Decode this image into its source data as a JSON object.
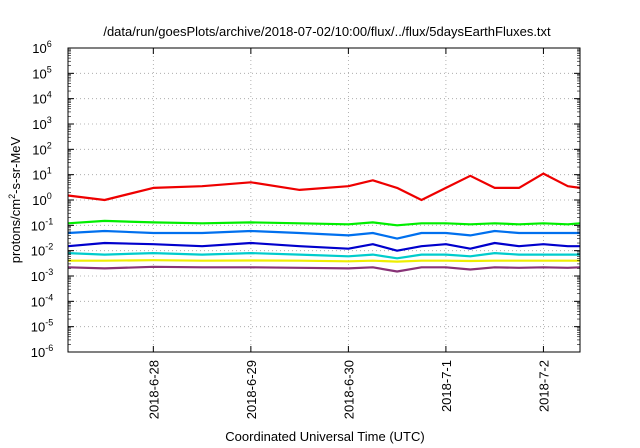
{
  "chart_data": {
    "type": "line",
    "title": "/data/run/goesPlots/archive/2018-07-02/10:00/flux/../flux/5daysEarthFluxes.txt",
    "xlabel": "Coordinated Universal Time (UTC)",
    "ylabel": {
      "prefix": "protons/cm",
      "superscript": "2",
      "suffix": "-s-sr-MeV"
    },
    "x_axis": {
      "kind": "date",
      "range": [
        "2018-06-27 03:00",
        "2018-07-02 09:00"
      ],
      "ticks": [
        {
          "x": "2018-06-28 00:00",
          "label": "2018-6-28"
        },
        {
          "x": "2018-06-29 00:00",
          "label": "2018-6-29"
        },
        {
          "x": "2018-06-30 00:00",
          "label": "2018-6-30"
        },
        {
          "x": "2018-07-01 00:00",
          "label": "2018-7-1"
        },
        {
          "x": "2018-07-02 00:00",
          "label": "2018-7-2"
        }
      ],
      "tick_label_rotation": "vertical"
    },
    "y_axis": {
      "scale": "log",
      "range": [
        1e-06,
        1000000.0
      ],
      "tick_labels": [
        {
          "base": "10",
          "exp": "6"
        },
        {
          "base": "10",
          "exp": "5"
        },
        {
          "base": "10",
          "exp": "4"
        },
        {
          "base": "10",
          "exp": "3"
        },
        {
          "base": "10",
          "exp": "2"
        },
        {
          "base": "10",
          "exp": "1"
        },
        {
          "base": "10",
          "exp": "0"
        },
        {
          "base": "10",
          "exp": "-1"
        },
        {
          "base": "10",
          "exp": "-2"
        },
        {
          "base": "10",
          "exp": "-3"
        },
        {
          "base": "10",
          "exp": "-4"
        },
        {
          "base": "10",
          "exp": "-5"
        },
        {
          "base": "10",
          "exp": "-6"
        }
      ]
    },
    "grid": true,
    "legend": "none",
    "x": [
      "2018-06-27 03:00",
      "2018-06-27 12:00",
      "2018-06-28 00:00",
      "2018-06-28 12:00",
      "2018-06-29 00:00",
      "2018-06-29 12:00",
      "2018-06-30 00:00",
      "2018-06-30 06:00",
      "2018-06-30 12:00",
      "2018-06-30 18:00",
      "2018-07-01 00:00",
      "2018-07-01 06:00",
      "2018-07-01 12:00",
      "2018-07-01 18:00",
      "2018-07-02 00:00",
      "2018-07-02 06:00",
      "2018-07-02 09:00"
    ],
    "series": [
      {
        "color": "#ee0000",
        "values": [
          1.5,
          1.0,
          3.0,
          3.5,
          5.0,
          2.5,
          3.5,
          6.0,
          3.0,
          1.0,
          3.0,
          9.0,
          3.0,
          3.0,
          11.0,
          3.5,
          3.0
        ]
      },
      {
        "color": "#00ee00",
        "values": [
          0.12,
          0.15,
          0.13,
          0.12,
          0.13,
          0.12,
          0.11,
          0.13,
          0.1,
          0.12,
          0.12,
          0.11,
          0.12,
          0.11,
          0.12,
          0.11,
          0.12
        ]
      },
      {
        "color": "#0070ee",
        "values": [
          0.05,
          0.06,
          0.05,
          0.05,
          0.06,
          0.05,
          0.04,
          0.05,
          0.03,
          0.05,
          0.05,
          0.04,
          0.06,
          0.05,
          0.05,
          0.05,
          0.05
        ]
      },
      {
        "color": "#0000cc",
        "values": [
          0.015,
          0.02,
          0.018,
          0.015,
          0.02,
          0.015,
          0.012,
          0.018,
          0.01,
          0.015,
          0.018,
          0.012,
          0.02,
          0.015,
          0.018,
          0.015,
          0.015
        ]
      },
      {
        "color": "#00cccc",
        "values": [
          0.008,
          0.007,
          0.008,
          0.007,
          0.008,
          0.007,
          0.006,
          0.007,
          0.005,
          0.007,
          0.007,
          0.006,
          0.008,
          0.007,
          0.007,
          0.007,
          0.007
        ]
      },
      {
        "color": "#eeee00",
        "values": [
          0.004,
          0.004,
          0.0042,
          0.004,
          0.0041,
          0.004,
          0.0038,
          0.004,
          0.0037,
          0.004,
          0.004,
          0.0039,
          0.004,
          0.004,
          0.004,
          0.004,
          0.004
        ]
      },
      {
        "color": "#883377",
        "values": [
          0.0022,
          0.002,
          0.0023,
          0.0022,
          0.0022,
          0.0021,
          0.002,
          0.0022,
          0.0015,
          0.0022,
          0.0022,
          0.0018,
          0.0022,
          0.0021,
          0.0022,
          0.0021,
          0.0022
        ]
      }
    ]
  }
}
